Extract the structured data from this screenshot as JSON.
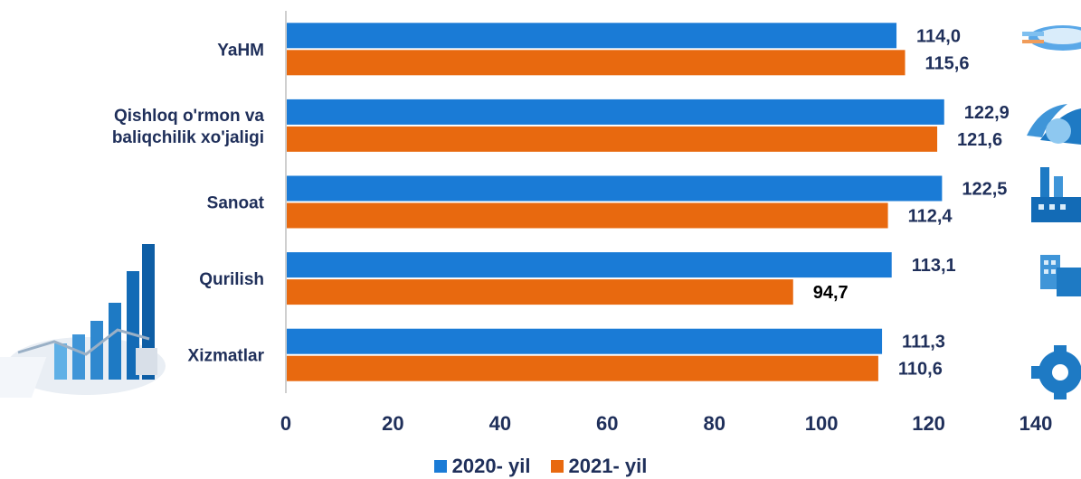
{
  "chart_data": {
    "type": "bar",
    "orientation": "horizontal",
    "categories": [
      [
        "YaHM"
      ],
      [
        "Qishloq o'rmon va",
        "baliqchilik xo'jaligi"
      ],
      [
        "Sanoat"
      ],
      [
        "Qurilish"
      ],
      [
        "Xizmatlar"
      ]
    ],
    "series": [
      {
        "name": "2020- yil",
        "color": "#1a7bd6",
        "values": [
          114.0,
          122.9,
          122.5,
          113.1,
          111.3
        ],
        "labels": [
          "114,0",
          "122,9",
          "122,5",
          "113,1",
          "111,3"
        ]
      },
      {
        "name": "2021- yil",
        "color": "#e8690f",
        "values": [
          115.6,
          121.6,
          112.4,
          94.7,
          110.6
        ],
        "labels": [
          "115,6",
          "121,6",
          "112,4",
          "94,7",
          "110,6"
        ]
      }
    ],
    "xlim": [
      0,
      140
    ],
    "xticks": [
      "0",
      "20",
      "40",
      "60",
      "80",
      "100",
      "120",
      "140"
    ],
    "grid": false,
    "legend_position": "bottom",
    "label_color": "#1f2f5a",
    "low_value_label_color": "#000000"
  },
  "decor_icons": [
    "growth-chart-illustration",
    "compass-icon",
    "plant-icon",
    "factory-icon",
    "buildings-icon",
    "gear-icon"
  ]
}
